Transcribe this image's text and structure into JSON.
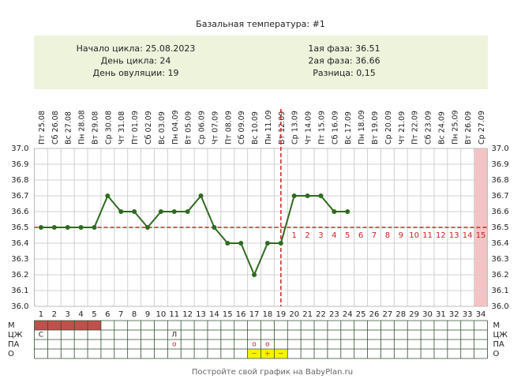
{
  "chart_data": {
    "type": "line",
    "title": "Базальная температура: #1",
    "info_left": [
      {
        "label": "Начало цикла:",
        "value": "25.08.2023"
      },
      {
        "label": "День цикла:",
        "value": 24
      },
      {
        "label": "День овуляции:",
        "value": 19
      }
    ],
    "info_right": [
      {
        "label": "1ая фаза:",
        "value": 36.51
      },
      {
        "label": "2ая фаза:",
        "value": 36.66
      },
      {
        "label": "Разница:",
        "value": "0,15"
      }
    ],
    "x": [
      1,
      2,
      3,
      4,
      5,
      6,
      7,
      8,
      9,
      10,
      11,
      12,
      13,
      14,
      15,
      16,
      17,
      18,
      19,
      20,
      21,
      22,
      23,
      24,
      25,
      26,
      27,
      28,
      29,
      30,
      31,
      32,
      33,
      34
    ],
    "weekdays": [
      "Пт",
      "Сб",
      "Вс",
      "Пн",
      "Вт",
      "Ср",
      "Чт",
      "Пт",
      "Сб",
      "Вс",
      "Пн",
      "Вт",
      "Ср",
      "Чт",
      "Пт",
      "Сб",
      "Вс",
      "Пн",
      "Вт",
      "Ср",
      "Чт",
      "Пт",
      "Сб",
      "Вс",
      "Пн",
      "Вт",
      "Ср",
      "Чт",
      "Пт",
      "Сб",
      "Вс",
      "Пн",
      "Вт",
      "Ср"
    ],
    "dates": [
      "25.08",
      "26.08",
      "27.08",
      "28.08",
      "29.08",
      "30.08",
      "31.08",
      "01.09",
      "02.09",
      "03.09",
      "04.09",
      "05.09",
      "06.09",
      "07.09",
      "08.09",
      "09.09",
      "10.09",
      "11.09",
      "12.09",
      "13.09",
      "14.09",
      "15.09",
      "16.09",
      "17.09",
      "18.09",
      "19.09",
      "20.09",
      "21.09",
      "22.09",
      "23.09",
      "24.09",
      "25.09",
      "26.09",
      "27.09"
    ],
    "series": [
      {
        "name": "Температура",
        "color": "#2f6b1f",
        "values": [
          36.5,
          36.5,
          36.5,
          36.5,
          36.5,
          36.7,
          36.6,
          36.6,
          36.5,
          36.6,
          36.6,
          36.6,
          36.7,
          36.5,
          36.4,
          36.4,
          36.2,
          36.4,
          36.4,
          36.7,
          36.7,
          36.7,
          36.6,
          36.6,
          null,
          null,
          null,
          null,
          null,
          null,
          null,
          null,
          null,
          null
        ]
      }
    ],
    "ylim": [
      36.0,
      37.0
    ],
    "yticks": [
      {
        "value": 37,
        "label": "37.0"
      },
      36.9,
      36.8,
      36.7,
      36.6,
      36.5,
      36.4,
      36.3,
      36.2,
      36.1,
      {
        "value": 36,
        "label": "36.0"
      }
    ],
    "coverline": 36.5,
    "guide_color": "#cc2222",
    "luteal_labels": [
      1,
      2,
      3,
      4,
      5,
      6,
      7,
      8,
      9,
      10,
      11,
      12,
      13,
      14,
      15
    ],
    "highlight_day": 34,
    "highlight_color": "#f4c4c4",
    "rows": [
      {
        "label": "М",
        "fill_days": [
          1,
          2,
          3,
          4,
          5
        ],
        "fill_color": "#c0504d"
      },
      {
        "label": "ЦЖ",
        "marks": [
          {
            "day": 1,
            "text": "С"
          },
          {
            "day": 11,
            "text": "Л"
          }
        ]
      },
      {
        "label": "ПА",
        "marks": [
          {
            "day": 11,
            "text": "o"
          },
          {
            "day": 17,
            "text": "o"
          },
          {
            "day": 18,
            "text": "o"
          }
        ],
        "text_color": "#cc2222"
      },
      {
        "label": "О",
        "marks": [
          {
            "day": 17,
            "text": "−"
          },
          {
            "day": 18,
            "text": "+"
          },
          {
            "day": 19,
            "text": "−"
          }
        ],
        "mark_fill": "#f5f500",
        "text_color": "#c05000"
      }
    ],
    "footer": "Постройте свой график на BabyPlan.ru"
  }
}
